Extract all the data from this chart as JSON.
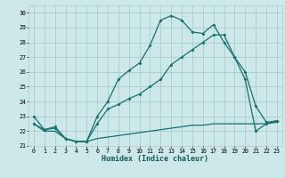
{
  "xlabel": "Humidex (Indice chaleur)",
  "bg_color": "#cce8e8",
  "grid_color": "#aacccc",
  "line_color": "#1a6e6e",
  "xlim": [
    -0.5,
    23.5
  ],
  "ylim": [
    21.0,
    30.5
  ],
  "xticks": [
    0,
    1,
    2,
    3,
    4,
    5,
    6,
    7,
    8,
    9,
    10,
    11,
    12,
    13,
    14,
    15,
    16,
    17,
    18,
    19,
    20,
    21,
    22,
    23
  ],
  "yticks": [
    21,
    22,
    23,
    24,
    25,
    26,
    27,
    28,
    29,
    30
  ],
  "line1_x": [
    0,
    1,
    2,
    3,
    4,
    5,
    6,
    7,
    8,
    9,
    10,
    11,
    12,
    13,
    14,
    15,
    16,
    17,
    18,
    19,
    20,
    21,
    22,
    23
  ],
  "line1_y": [
    23.0,
    22.1,
    22.2,
    21.5,
    21.3,
    21.3,
    23.0,
    24.0,
    25.5,
    26.1,
    26.6,
    27.8,
    29.5,
    29.8,
    29.5,
    28.7,
    28.6,
    29.2,
    28.0,
    27.0,
    26.0,
    23.7,
    22.6,
    22.7
  ],
  "line2_x": [
    0,
    1,
    2,
    3,
    4,
    5,
    6,
    7,
    8,
    9,
    10,
    11,
    12,
    13,
    14,
    15,
    16,
    17,
    18,
    19,
    20,
    21,
    22,
    23
  ],
  "line2_y": [
    22.5,
    22.1,
    22.3,
    21.5,
    21.3,
    21.3,
    22.5,
    23.5,
    23.8,
    24.2,
    24.5,
    25.0,
    25.5,
    26.5,
    27.0,
    27.5,
    28.0,
    28.5,
    28.5,
    27.0,
    25.5,
    22.0,
    22.5,
    22.7
  ],
  "line3_x": [
    0,
    1,
    2,
    3,
    4,
    5,
    6,
    7,
    8,
    9,
    10,
    11,
    12,
    13,
    14,
    15,
    16,
    17,
    18,
    19,
    20,
    21,
    22,
    23
  ],
  "line3_y": [
    22.5,
    22.0,
    22.0,
    21.5,
    21.3,
    21.3,
    21.5,
    21.6,
    21.7,
    21.8,
    21.9,
    22.0,
    22.1,
    22.2,
    22.3,
    22.4,
    22.4,
    22.5,
    22.5,
    22.5,
    22.5,
    22.5,
    22.5,
    22.6
  ],
  "xlabel_fontsize": 6.0,
  "tick_fontsize": 4.8,
  "marker_size": 2.0,
  "line_width": 0.9
}
